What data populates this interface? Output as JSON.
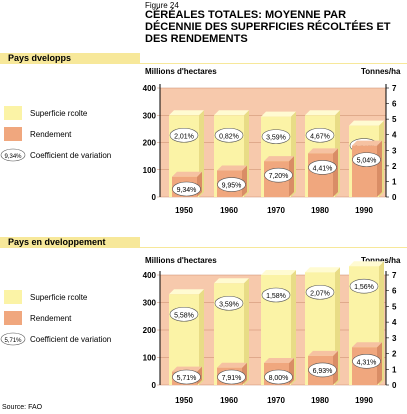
{
  "figure_label": "Figure 24",
  "figure_title": "CÉRÉALES TOTALES: MOYENNE PAR DÉCENNIE DES SUPERFICIES RÉCOLTÉES ET DES RENDEMENTS",
  "source": "Source: FAO",
  "colors": {
    "area": "#fbf3a6",
    "area_side": "#e8dc86",
    "yield": "#f0a77e",
    "yield_side": "#d98d66",
    "plot_bg": "#f7c9ac",
    "band": "#f7e89a"
  },
  "chart_data": [
    {
      "type": "bar",
      "panel": "Pays dveloppés",
      "panel_label": "Pays dvelopps",
      "categories": [
        "1950",
        "1960",
        "1970",
        "1980",
        "1990"
      ],
      "ylabel_left": "Millions d'hectares",
      "ylabel_right": "Tonnes/ha",
      "ylim_left": [
        0,
        400
      ],
      "ylim_right": [
        0,
        7
      ],
      "yticks_left": [
        "0",
        "100",
        "200",
        "300",
        "400"
      ],
      "yticks_right": [
        "0",
        "1",
        "2",
        "3",
        "4",
        "5",
        "6",
        "7"
      ],
      "series": [
        {
          "name": "Superficie rcolte",
          "axis": "left",
          "values": [
            300,
            300,
            295,
            300,
            262
          ]
        },
        {
          "name": "Rendement",
          "axis": "right",
          "values": [
            1.3,
            1.7,
            2.3,
            2.8,
            3.3
          ]
        }
      ],
      "cv_label": "9,34%",
      "cv_legend": "Coefficient de variation",
      "cv_area": [
        "2,01%",
        "0,82%",
        "3,59%",
        "4,67%",
        "3,47%"
      ],
      "cv_yield": [
        "9,34%",
        "9,95%",
        "7,20%",
        "4,41%",
        "5,04%"
      ]
    },
    {
      "type": "bar",
      "panel": "Pays en développement",
      "panel_label": "Pays en dveloppement",
      "categories": [
        "1950",
        "1960",
        "1970",
        "1980",
        "1990"
      ],
      "ylabel_left": "Millions d'hectares",
      "ylabel_right": "Tonnes/ha",
      "ylim_left": [
        0,
        400
      ],
      "ylim_right": [
        0,
        7
      ],
      "yticks_left": [
        "0",
        "100",
        "200",
        "300",
        "400"
      ],
      "yticks_right": [
        "0",
        "1",
        "2",
        "3",
        "4",
        "5",
        "6",
        "7"
      ],
      "series": [
        {
          "name": "Superficie rcolte",
          "axis": "left",
          "values": [
            330,
            370,
            400,
            410,
            432
          ]
        },
        {
          "name": "Rendement",
          "axis": "right",
          "values": [
            0.85,
            1.1,
            1.4,
            1.85,
            2.4
          ]
        }
      ],
      "cv_label": "5,71%",
      "cv_legend": "Coefficient de variation",
      "cv_area": [
        "5,58%",
        "3,59%",
        "1,58%",
        "2,07%",
        "1,56%"
      ],
      "cv_yield": [
        "5,71%",
        "7,91%",
        "8,00%",
        "6,93%",
        "4,31%"
      ]
    }
  ]
}
